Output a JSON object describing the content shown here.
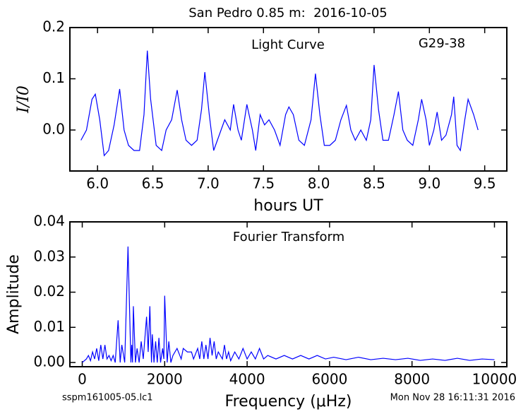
{
  "title": "San Pedro 0.85 m:  2016-10-05",
  "footer": {
    "file": "sspm161005-05.lc1",
    "timestamp": "Mon Nov 28 16:11:31 2016"
  },
  "chart_data": [
    {
      "type": "line",
      "label": "Light Curve",
      "note": "G29-38",
      "xlabel": "hours UT",
      "ylabel": "I/I0",
      "xlim": [
        5.75,
        9.7
      ],
      "ylim": [
        -0.08,
        0.2
      ],
      "xticks": [
        {
          "value": 6,
          "label": "6.0"
        },
        6.5,
        {
          "value": 7,
          "label": "7.0"
        },
        7.5,
        {
          "value": 8,
          "label": "8.0"
        },
        8.5,
        {
          "value": 9,
          "label": "9.0"
        },
        9.5
      ],
      "yticks": [
        {
          "value": 0,
          "label": "0.0"
        },
        0.1,
        0.2
      ],
      "series": [
        {
          "color": "#0000ff",
          "x": [
            5.85,
            5.9,
            5.95,
            5.98,
            6.02,
            6.06,
            6.1,
            6.15,
            6.2,
            6.24,
            6.28,
            6.33,
            6.38,
            6.42,
            6.45,
            6.48,
            6.53,
            6.58,
            6.62,
            6.67,
            6.72,
            6.76,
            6.8,
            6.85,
            6.9,
            6.94,
            6.97,
            7.01,
            7.05,
            7.1,
            7.15,
            7.2,
            7.23,
            7.27,
            7.3,
            7.35,
            7.4,
            7.43,
            7.47,
            7.51,
            7.55,
            7.6,
            7.65,
            7.7,
            7.73,
            7.77,
            7.82,
            7.87,
            7.93,
            7.97,
            8.01,
            8.05,
            8.1,
            8.15,
            8.2,
            8.25,
            8.29,
            8.33,
            8.38,
            8.43,
            8.47,
            8.5,
            8.54,
            8.58,
            8.63,
            8.68,
            8.72,
            8.76,
            8.8,
            8.85,
            8.9,
            8.93,
            8.97,
            9.0,
            9.04,
            9.07,
            9.11,
            9.15,
            9.2,
            9.22,
            9.25,
            9.28,
            9.32,
            9.35,
            9.4,
            9.44
          ],
          "values": [
            -0.02,
            0.0,
            0.06,
            0.07,
            0.02,
            -0.05,
            -0.04,
            0.01,
            0.08,
            0.0,
            -0.03,
            -0.04,
            -0.04,
            0.03,
            0.155,
            0.06,
            -0.03,
            -0.04,
            0.0,
            0.02,
            0.078,
            0.02,
            -0.02,
            -0.03,
            -0.02,
            0.04,
            0.113,
            0.03,
            -0.04,
            -0.01,
            0.02,
            0.0,
            0.05,
            0.0,
            -0.02,
            0.05,
            0.0,
            -0.04,
            0.03,
            0.01,
            0.02,
            0.0,
            -0.03,
            0.03,
            0.045,
            0.03,
            -0.02,
            -0.03,
            0.02,
            0.11,
            0.03,
            -0.03,
            -0.03,
            -0.02,
            0.02,
            0.048,
            0.0,
            -0.02,
            0.0,
            -0.02,
            0.02,
            0.127,
            0.04,
            -0.02,
            -0.02,
            0.03,
            0.075,
            0.0,
            -0.02,
            -0.03,
            0.02,
            0.06,
            0.02,
            -0.03,
            0.0,
            0.035,
            -0.02,
            -0.01,
            0.03,
            0.065,
            -0.03,
            -0.04,
            0.02,
            0.06,
            0.03,
            0.0
          ]
        }
      ]
    },
    {
      "type": "line",
      "label": "Fourier Transform",
      "xlabel": "Frequency (μHz)",
      "ylabel": "Amplitude",
      "xlim": [
        -300,
        10300
      ],
      "ylim": [
        -0.0012,
        0.04
      ],
      "xticks": [
        0,
        2000,
        4000,
        6000,
        8000,
        10000
      ],
      "yticks": [
        {
          "value": 0,
          "label": "0.00"
        },
        0.01,
        0.02,
        0.03,
        0.04
      ],
      "series": [
        {
          "color": "#0000ff",
          "x": [
            0,
            100,
            150,
            200,
            250,
            300,
            350,
            400,
            450,
            500,
            550,
            600,
            650,
            700,
            750,
            800,
            870,
            920,
            960,
            1030,
            1110,
            1180,
            1200,
            1220,
            1240,
            1290,
            1330,
            1380,
            1430,
            1480,
            1560,
            1600,
            1640,
            1680,
            1700,
            1740,
            1780,
            1820,
            1860,
            1900,
            1950,
            1980,
            2000,
            2060,
            2100,
            2150,
            2200,
            2300,
            2400,
            2450,
            2550,
            2650,
            2700,
            2800,
            2850,
            2900,
            2950,
            3000,
            3050,
            3100,
            3150,
            3200,
            3250,
            3300,
            3400,
            3450,
            3500,
            3550,
            3600,
            3700,
            3800,
            3900,
            4000,
            4100,
            4200,
            4300,
            4400,
            4500,
            4700,
            4900,
            5100,
            5300,
            5500,
            5700,
            5900,
            6100,
            6400,
            6700,
            7000,
            7300,
            7600,
            7900,
            8200,
            8500,
            8800,
            9100,
            9400,
            9700,
            10000
          ],
          "values": [
            0,
            0.001,
            0.002,
            0.0005,
            0.003,
            0.001,
            0.004,
            0.0005,
            0.005,
            0.001,
            0.005,
            0.001,
            0.002,
            0.0005,
            0.002,
            0,
            0.012,
            0,
            0.005,
            0,
            0.033,
            0,
            0.005,
            0,
            0.016,
            0,
            0.004,
            0,
            0.006,
            0.001,
            0.013,
            0.003,
            0.016,
            0,
            0.008,
            0,
            0.006,
            0,
            0.007,
            0,
            0.004,
            0.001,
            0.019,
            0,
            0.006,
            0,
            0.002,
            0.004,
            0.001,
            0.004,
            0.003,
            0.003,
            0.001,
            0.004,
            0.001,
            0.006,
            0.001,
            0.005,
            0.001,
            0.007,
            0.002,
            0.006,
            0.001,
            0.003,
            0.001,
            0.005,
            0.001,
            0.003,
            0.0005,
            0.003,
            0.001,
            0.004,
            0.001,
            0.003,
            0.001,
            0.004,
            0.001,
            0.002,
            0.001,
            0.002,
            0.001,
            0.002,
            0.001,
            0.002,
            0.001,
            0.0015,
            0.0008,
            0.0015,
            0.0008,
            0.0012,
            0.0008,
            0.0012,
            0.0006,
            0.001,
            0.0006,
            0.0012,
            0.0006,
            0.001,
            0.0008
          ]
        }
      ]
    }
  ]
}
